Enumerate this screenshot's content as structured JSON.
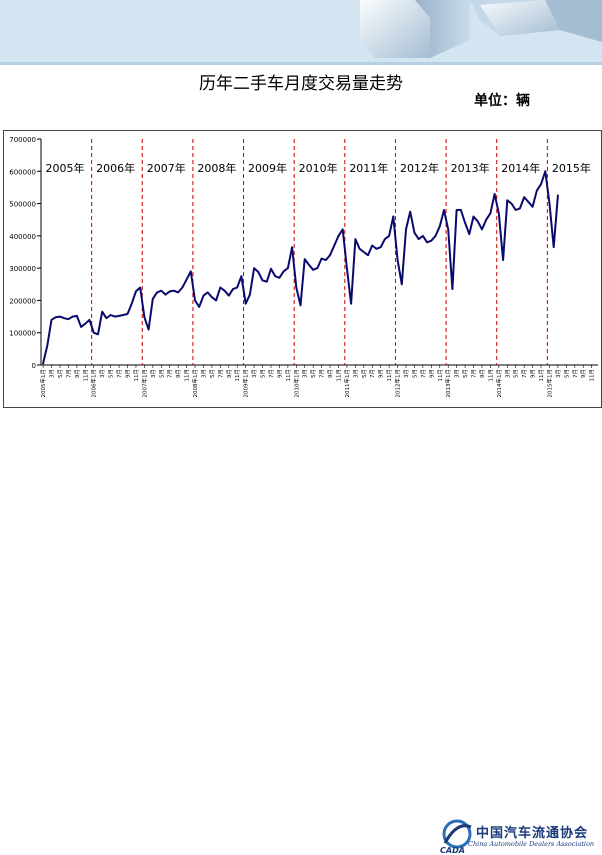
{
  "page": {
    "title": "历年二手车月度交易量走势",
    "unit": "单位：辆",
    "logo_cn": "中国汽车流通协会",
    "logo_en": "China Automobile Dealers Association",
    "logo_abbr": "CADA"
  },
  "colors": {
    "line": "#0a0a6e",
    "divider": "#cc0000",
    "banner": "#cfe2f1"
  },
  "chart_data": {
    "type": "line",
    "title": "",
    "xlabel": "",
    "ylabel": "",
    "ylim": [
      0,
      700000
    ],
    "yticks": [
      "0",
      "100000",
      "200000",
      "300000",
      "400000",
      "500000",
      "600000",
      "700000"
    ],
    "grid": false,
    "year_labels": [
      "2005年",
      "2006年",
      "2007年",
      "2008年",
      "2009年",
      "2010年",
      "2011年",
      "2012年",
      "2013年",
      "2014年",
      "2015年"
    ],
    "x_tick_labels": [
      "2005年1月",
      "3月",
      "5月",
      "7月",
      "9月",
      "11月",
      "2006年1月",
      "3月",
      "5月",
      "7月",
      "9月",
      "11月",
      "2007年1月",
      "3月",
      "5月",
      "7月",
      "9月",
      "11月",
      "2008年1月",
      "3月",
      "5月",
      "7月",
      "9月",
      "11月",
      "2009年1月",
      "3月",
      "5月",
      "7月",
      "9月",
      "11月",
      "2010年1月",
      "3月",
      "5月",
      "7月",
      "9月",
      "11月",
      "2011年1月",
      "3月",
      "5月",
      "7月",
      "9月",
      "11月",
      "2012年1月",
      "3月",
      "5月",
      "7月",
      "9月",
      "11月",
      "2013年1月",
      "3月",
      "5月",
      "7月",
      "9月",
      "11月",
      "2014年1月",
      "3月",
      "5月",
      "7月",
      "9月",
      "11月",
      "2015年1月",
      "3月",
      "5月",
      "7月",
      "9月",
      "11月"
    ],
    "series": [
      {
        "values": [
          5000,
          60000,
          140000,
          148000,
          150000,
          145000,
          142000,
          150000,
          152000,
          118000,
          128000,
          140000,
          100000,
          95000,
          165000,
          145000,
          155000,
          150000,
          152000,
          155000,
          158000,
          190000,
          228000,
          240000,
          148000,
          110000,
          205000,
          225000,
          230000,
          218000,
          228000,
          230000,
          225000,
          240000,
          265000,
          290000,
          200000,
          180000,
          215000,
          225000,
          210000,
          200000,
          240000,
          230000,
          215000,
          235000,
          240000,
          275000,
          190000,
          218000,
          300000,
          288000,
          262000,
          258000,
          298000,
          275000,
          270000,
          290000,
          300000,
          365000,
          240000,
          185000,
          328000,
          310000,
          295000,
          300000,
          330000,
          325000,
          340000,
          370000,
          400000,
          420000,
          300000,
          190000,
          390000,
          360000,
          350000,
          340000,
          370000,
          360000,
          365000,
          390000,
          400000,
          460000,
          325000,
          250000,
          420000,
          475000,
          410000,
          390000,
          400000,
          380000,
          385000,
          400000,
          430000,
          480000,
          420000,
          235000,
          480000,
          480000,
          440000,
          405000,
          460000,
          445000,
          420000,
          450000,
          470000,
          530000,
          470000,
          325000,
          510000,
          500000,
          480000,
          485000,
          520000,
          505000,
          490000,
          540000,
          560000,
          600000,
          500000,
          365000,
          525000
        ]
      }
    ]
  }
}
